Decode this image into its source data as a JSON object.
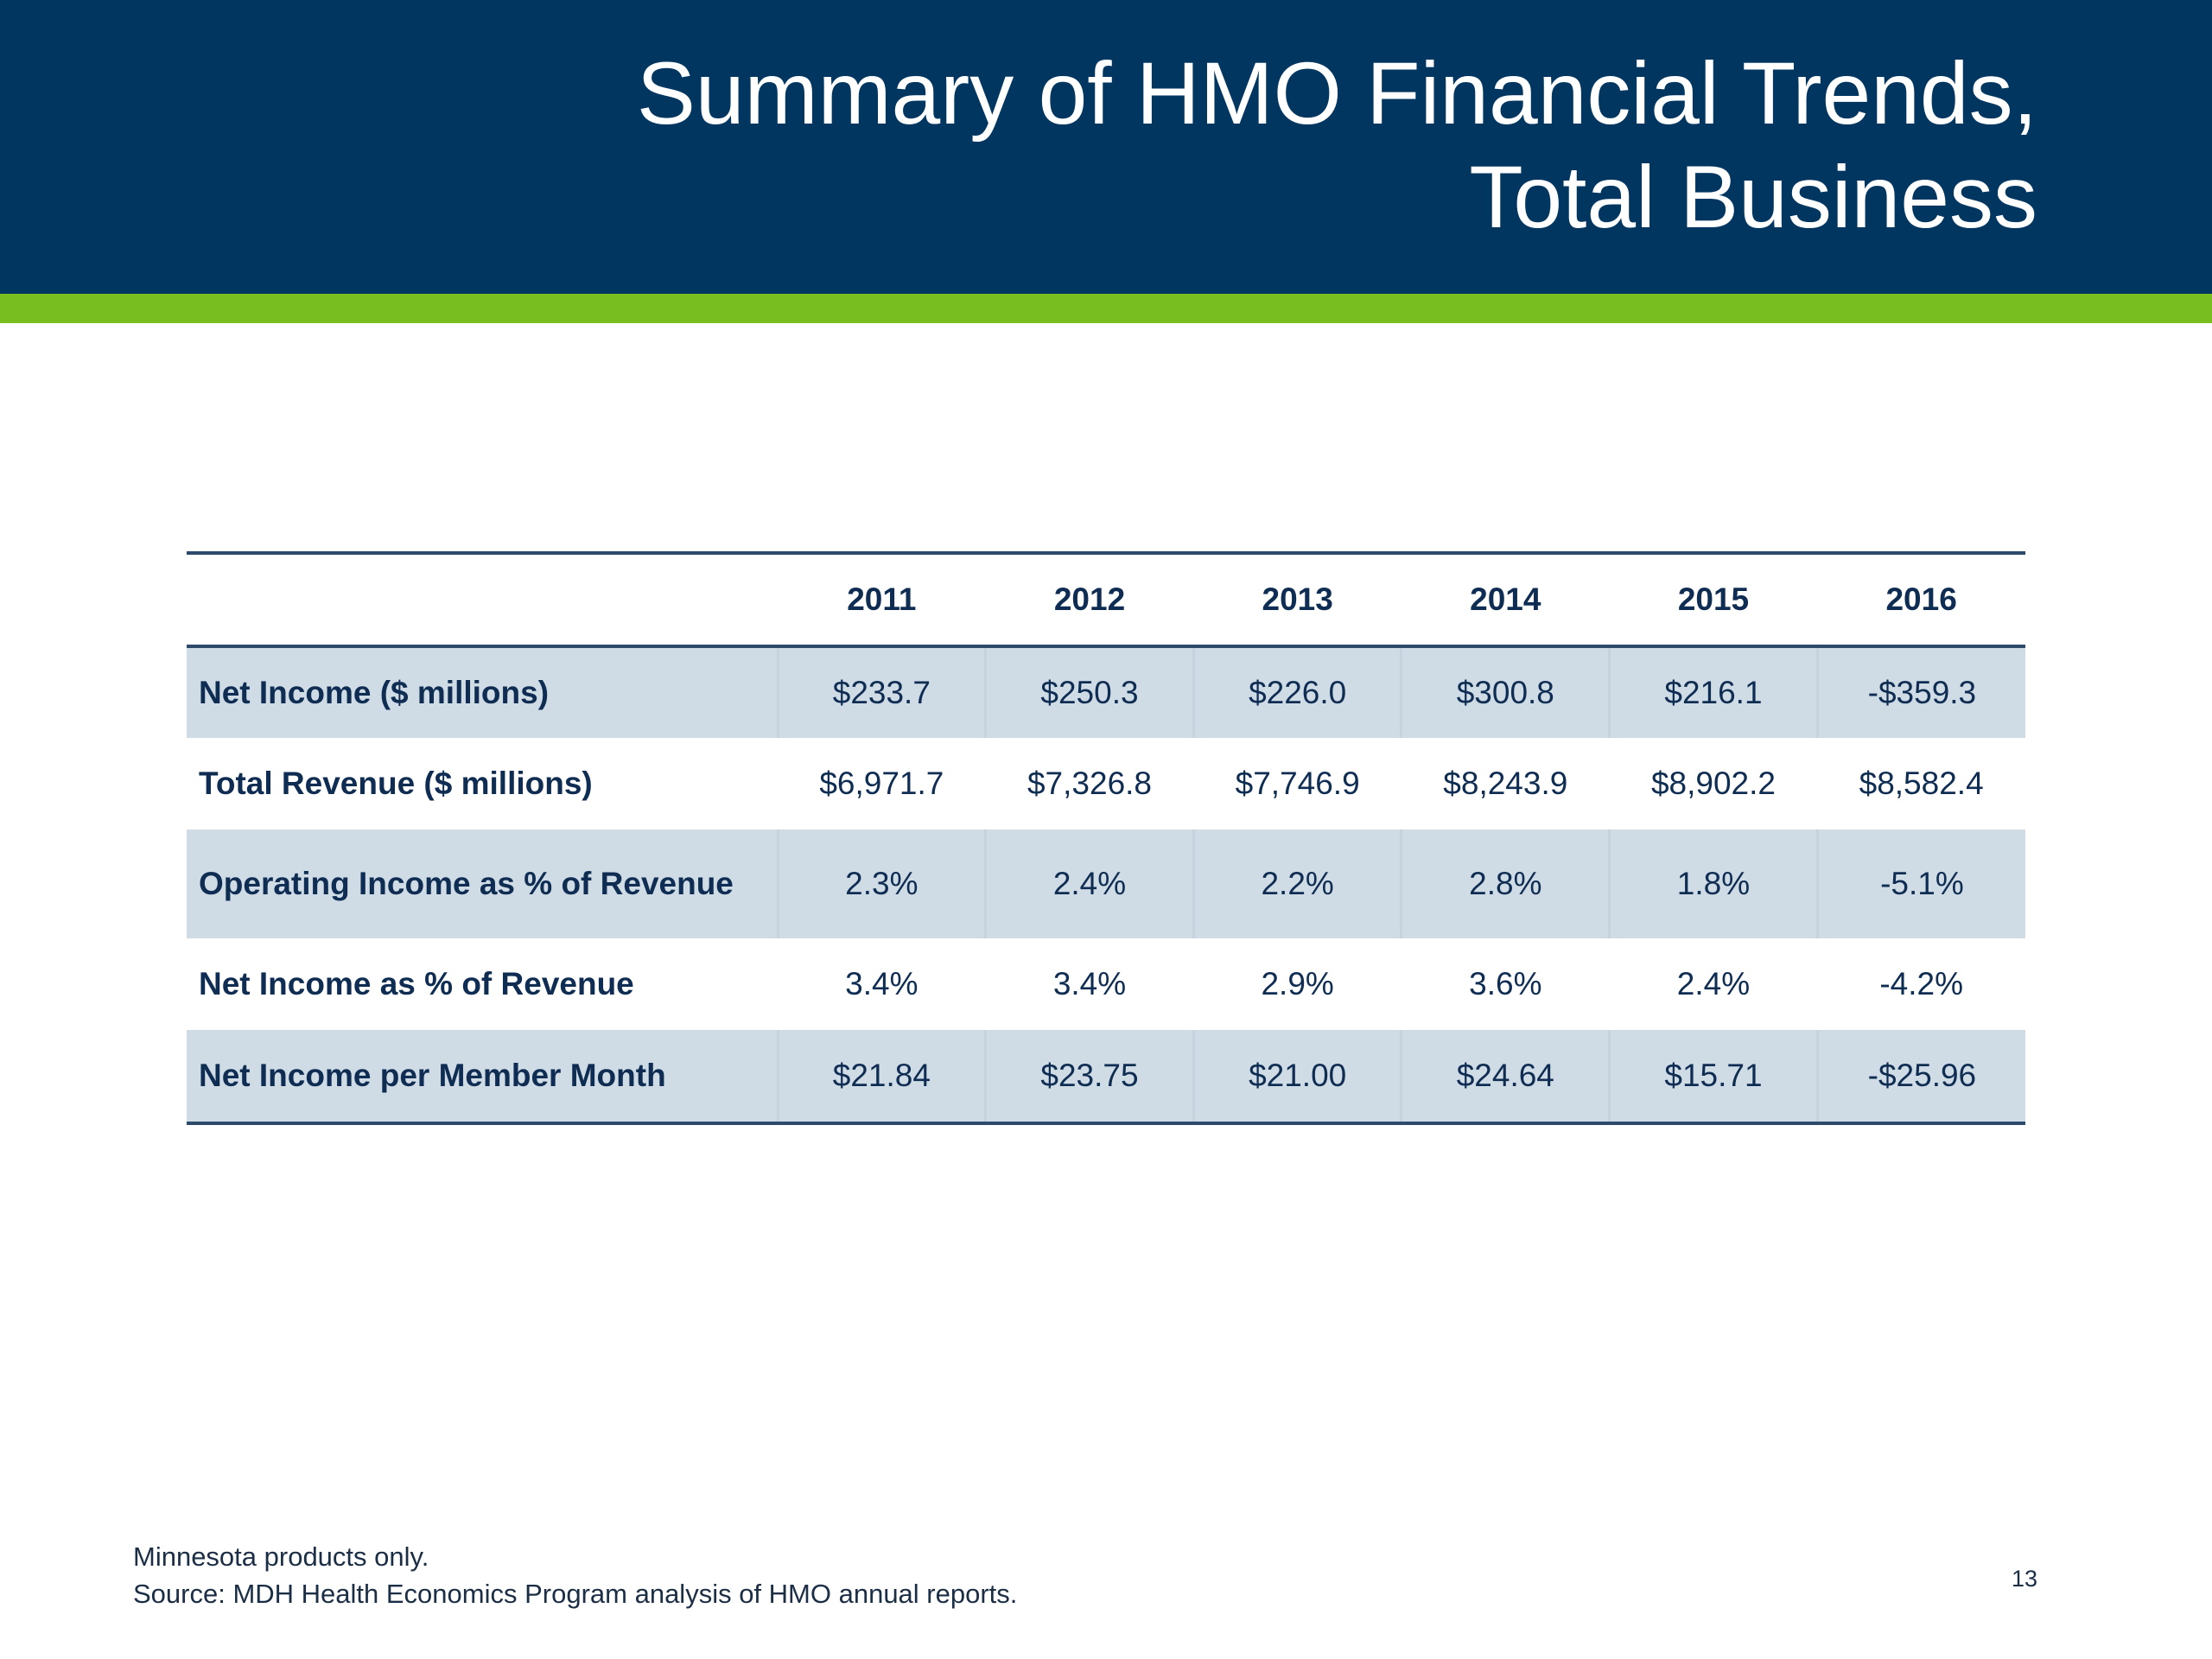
{
  "slide": {
    "title_line1": "Summary of HMO Financial Trends,",
    "title_line2": "Total Business",
    "page_number": "13",
    "colors": {
      "header": "#003660",
      "accent": "#78be20",
      "row_shade": "#cfdbe5",
      "text": "#0f2d52"
    }
  },
  "table": {
    "years": [
      "2011",
      "2012",
      "2013",
      "2014",
      "2015",
      "2016"
    ],
    "rows": [
      {
        "label": "Net Income ($ millions)",
        "values": [
          "$233.7",
          "$250.3",
          "$226.0",
          "$300.8",
          "$216.1",
          "-$359.3"
        ]
      },
      {
        "label": "Total Revenue ($ millions)",
        "values": [
          "$6,971.7",
          "$7,326.8",
          "$7,746.9",
          "$8,243.9",
          "$8,902.2",
          "$8,582.4"
        ]
      },
      {
        "label": "Operating Income as % of Revenue",
        "values": [
          "2.3%",
          "2.4%",
          "2.2%",
          "2.8%",
          "1.8%",
          "-5.1%"
        ]
      },
      {
        "label": "Net Income as % of Revenue",
        "values": [
          "3.4%",
          "3.4%",
          "2.9%",
          "3.6%",
          "2.4%",
          "-4.2%"
        ]
      },
      {
        "label": "Net Income per Member Month",
        "values": [
          "$21.84",
          "$23.75",
          "$21.00",
          "$24.64",
          "$15.71",
          "-$25.96"
        ]
      }
    ]
  },
  "footer": {
    "note_line1": "Minnesota products only.",
    "note_line2": "Source: MDH Health Economics Program analysis of HMO annual reports."
  }
}
